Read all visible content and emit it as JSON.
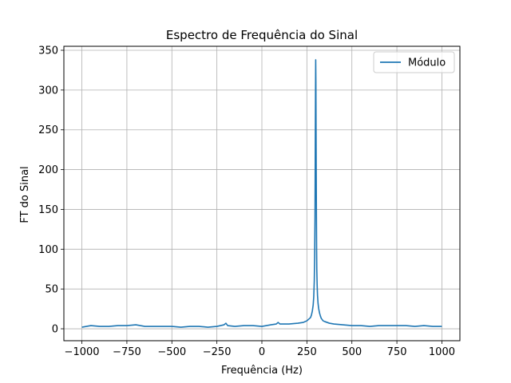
{
  "chart_data": {
    "type": "line",
    "title": "Espectro de Frequência do Sinal",
    "xlabel": "Frequência (Hz)",
    "ylabel": "FT do Sinal",
    "xlim": [
      -1100,
      1100
    ],
    "ylim": [
      -15,
      355
    ],
    "xticks": [
      -1000,
      -750,
      -500,
      -250,
      0,
      250,
      500,
      750,
      1000
    ],
    "xtick_labels": [
      "−1000",
      "−750",
      "−500",
      "−250",
      "0",
      "250",
      "500",
      "750",
      "1000"
    ],
    "yticks": [
      0,
      50,
      100,
      150,
      200,
      250,
      300,
      350
    ],
    "ytick_labels": [
      "0",
      "50",
      "100",
      "150",
      "200",
      "250",
      "300",
      "350"
    ],
    "grid": true,
    "legend_position": "top-right",
    "series": [
      {
        "name": "Módulo",
        "color": "#1f77b4",
        "x": [
          -1000,
          -950,
          -900,
          -850,
          -800,
          -750,
          -700,
          -650,
          -600,
          -550,
          -500,
          -450,
          -400,
          -350,
          -300,
          -250,
          -210,
          -200,
          -190,
          -150,
          -100,
          -50,
          0,
          50,
          80,
          90,
          100,
          150,
          200,
          230,
          250,
          260,
          270,
          275,
          280,
          285,
          288,
          291,
          293,
          295,
          296,
          297,
          298,
          299,
          300,
          301,
          302,
          303,
          304,
          305,
          307,
          309,
          312,
          315,
          320,
          325,
          330,
          340,
          350,
          375,
          400,
          450,
          500,
          550,
          600,
          650,
          700,
          750,
          800,
          850,
          900,
          950,
          1000
        ],
        "y": [
          2,
          4,
          3,
          3,
          4,
          4,
          5,
          3,
          3,
          3,
          3,
          2,
          3,
          3,
          2,
          3,
          5,
          7,
          4,
          3,
          4,
          4,
          3,
          5,
          6,
          8,
          6,
          6,
          7,
          8,
          10,
          12,
          14,
          17,
          22,
          30,
          40,
          60,
          90,
          140,
          190,
          250,
          300,
          338,
          310,
          250,
          190,
          140,
          100,
          75,
          55,
          42,
          32,
          26,
          20,
          16,
          13,
          10,
          9,
          7,
          6,
          5,
          4,
          4,
          3,
          4,
          4,
          4,
          4,
          3,
          4,
          3,
          3
        ]
      }
    ]
  }
}
